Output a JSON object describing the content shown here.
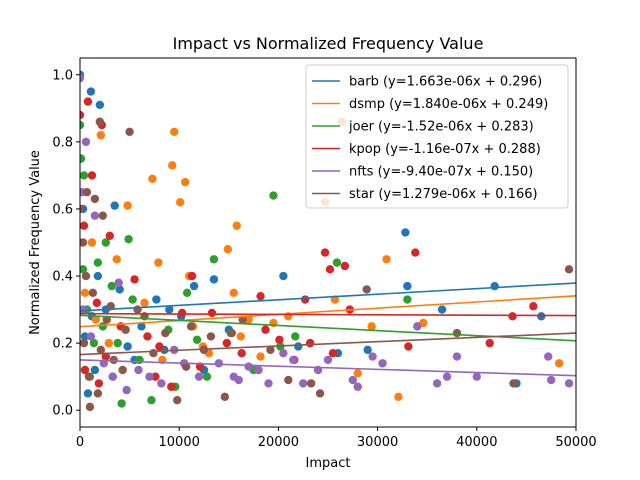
{
  "chart_data": {
    "type": "scatter",
    "title": "Impact vs Normalized Frequency Value",
    "xlabel": "Impact",
    "ylabel": "Normalized Frequency Value",
    "xlim": [
      0,
      50000
    ],
    "ylim": [
      -0.05,
      1.05
    ],
    "x_ticks": [
      0,
      10000,
      20000,
      30000,
      40000,
      50000
    ],
    "x_tick_labels": [
      "0",
      "10000",
      "20000",
      "30000",
      "40000",
      "50000"
    ],
    "y_ticks": [
      0.0,
      0.2,
      0.4,
      0.6,
      0.8,
      1.0
    ],
    "y_tick_labels": [
      "0.0",
      "0.2",
      "0.4",
      "0.6",
      "0.8",
      "1.0"
    ],
    "grid": false,
    "legend_position": "top-right",
    "series": [
      {
        "name": "barb",
        "legend_label": "barb (y=1.663e-06x + 0.296)",
        "color": "#1f77b4",
        "slope": 1.663e-06,
        "intercept": 0.296,
        "points": [
          [
            0,
            1.0
          ],
          [
            1100,
            0.95
          ],
          [
            2000,
            0.91
          ],
          [
            3500,
            0.61
          ],
          [
            4800,
            0.19
          ],
          [
            6200,
            0.25
          ],
          [
            7700,
            0.33
          ],
          [
            9000,
            0.3
          ],
          [
            10200,
            0.28
          ],
          [
            11500,
            0.37
          ],
          [
            13500,
            0.39
          ],
          [
            15000,
            0.24
          ],
          [
            20500,
            0.4
          ],
          [
            22000,
            0.19
          ],
          [
            26000,
            0.17
          ],
          [
            29000,
            0.18
          ],
          [
            32800,
            0.53
          ],
          [
            33000,
            0.37
          ],
          [
            36500,
            0.3
          ],
          [
            41800,
            0.37
          ],
          [
            44000,
            0.08
          ],
          [
            46500,
            0.28
          ],
          [
            500,
            0.22
          ],
          [
            1500,
            0.12
          ],
          [
            2600,
            0.3
          ],
          [
            3300,
            0.1
          ],
          [
            4000,
            0.36
          ],
          [
            800,
            0.05
          ],
          [
            1800,
            0.4
          ],
          [
            5500,
            0.15
          ],
          [
            8500,
            0.18
          ],
          [
            12500,
            0.12
          ],
          [
            300,
            0.6
          ],
          [
            1200,
            0.28
          ]
        ]
      },
      {
        "name": "dsmp",
        "legend_label": "dsmp (y=1.840e-06x + 0.249)",
        "color": "#ff7f0e",
        "slope": 1.84e-06,
        "intercept": 0.249,
        "points": [
          [
            1200,
            0.5
          ],
          [
            2100,
            0.82
          ],
          [
            4800,
            0.61
          ],
          [
            7300,
            0.69
          ],
          [
            7900,
            0.44
          ],
          [
            9300,
            0.73
          ],
          [
            9500,
            0.83
          ],
          [
            10100,
            0.62
          ],
          [
            10600,
            0.68
          ],
          [
            11000,
            0.4
          ],
          [
            12400,
            0.19
          ],
          [
            14900,
            0.48
          ],
          [
            15500,
            0.35
          ],
          [
            15800,
            0.55
          ],
          [
            17000,
            0.27
          ],
          [
            19500,
            0.26
          ],
          [
            21000,
            0.28
          ],
          [
            24700,
            0.62
          ],
          [
            25700,
            0.33
          ],
          [
            26400,
            0.86
          ],
          [
            29400,
            0.25
          ],
          [
            30900,
            0.45
          ],
          [
            32100,
            0.04
          ],
          [
            34600,
            0.26
          ],
          [
            48300,
            0.14
          ],
          [
            500,
            0.35
          ],
          [
            1600,
            0.27
          ],
          [
            2900,
            0.2
          ],
          [
            3700,
            0.45
          ],
          [
            6500,
            0.32
          ],
          [
            8300,
            0.15
          ],
          [
            11400,
            0.25
          ],
          [
            13000,
            0.17
          ],
          [
            16200,
            0.22
          ],
          [
            18200,
            0.16
          ],
          [
            23200,
            0.2
          ],
          [
            28000,
            0.11
          ]
        ]
      },
      {
        "name": "joer",
        "legend_label": "joer (y=-1.52e-06x + 0.283)",
        "color": "#2ca02c",
        "slope": -1.52e-06,
        "intercept": 0.283,
        "points": [
          [
            0,
            0.85
          ],
          [
            100,
            0.75
          ],
          [
            400,
            0.7
          ],
          [
            1800,
            0.44
          ],
          [
            2600,
            0.5
          ],
          [
            3200,
            0.37
          ],
          [
            4900,
            0.51
          ],
          [
            5300,
            0.33
          ],
          [
            7200,
            0.03
          ],
          [
            8900,
            0.24
          ],
          [
            11800,
            0.21
          ],
          [
            13500,
            0.45
          ],
          [
            15200,
            0.23
          ],
          [
            19500,
            0.64
          ],
          [
            20200,
            0.19
          ],
          [
            21700,
            0.22
          ],
          [
            25900,
            0.44
          ],
          [
            33000,
            0.33
          ],
          [
            700,
            0.3
          ],
          [
            1400,
            0.2
          ],
          [
            2300,
            0.25
          ],
          [
            4200,
            0.02
          ],
          [
            6000,
            0.15
          ],
          [
            9600,
            0.07
          ],
          [
            10800,
            0.35
          ],
          [
            300,
            0.42
          ],
          [
            1000,
            0.1
          ],
          [
            3800,
            0.2
          ],
          [
            12800,
            0.1
          ],
          [
            17500,
            0.12
          ]
        ]
      },
      {
        "name": "kpop",
        "legend_label": "kpop (y=-1.16e-07x + 0.288)",
        "color": "#d62728",
        "slope": -1.16e-07,
        "intercept": 0.288,
        "points": [
          [
            0,
            0.88
          ],
          [
            800,
            0.92
          ],
          [
            1200,
            0.7
          ],
          [
            2200,
            0.85
          ],
          [
            3000,
            0.52
          ],
          [
            5500,
            0.39
          ],
          [
            8000,
            0.19
          ],
          [
            9200,
            0.07
          ],
          [
            10300,
            0.29
          ],
          [
            11300,
            0.4
          ],
          [
            13300,
            0.29
          ],
          [
            14800,
            0.2
          ],
          [
            18200,
            0.34
          ],
          [
            18700,
            0.24
          ],
          [
            22700,
            0.33
          ],
          [
            23200,
            0.2
          ],
          [
            24700,
            0.47
          ],
          [
            25200,
            0.42
          ],
          [
            25500,
            0.17
          ],
          [
            26700,
            0.43
          ],
          [
            27200,
            0.3
          ],
          [
            33100,
            0.19
          ],
          [
            33800,
            0.47
          ],
          [
            41300,
            0.2
          ],
          [
            43600,
            0.28
          ],
          [
            45700,
            0.31
          ],
          [
            400,
            0.55
          ],
          [
            1700,
            0.32
          ],
          [
            2600,
            0.16
          ],
          [
            4100,
            0.25
          ],
          [
            6800,
            0.22
          ],
          [
            7600,
            0.1
          ],
          [
            12100,
            0.13
          ],
          [
            16300,
            0.17
          ],
          [
            20100,
            0.21
          ],
          [
            21600,
            0.15
          ],
          [
            500,
            0.12
          ],
          [
            1900,
            0.08
          ]
        ]
      },
      {
        "name": "nfts",
        "legend_label": "nfts (y=-9.40e-07x + 0.150)",
        "color": "#9467bd",
        "slope": -9.4e-07,
        "intercept": 0.15,
        "points": [
          [
            0,
            0.99
          ],
          [
            200,
            0.65
          ],
          [
            600,
            0.8
          ],
          [
            1500,
            0.58
          ],
          [
            3900,
            0.38
          ],
          [
            7000,
            0.1
          ],
          [
            9500,
            0.18
          ],
          [
            10500,
            0.14
          ],
          [
            12000,
            0.1
          ],
          [
            14000,
            0.14
          ],
          [
            15500,
            0.1
          ],
          [
            16000,
            0.09
          ],
          [
            17000,
            0.13
          ],
          [
            18000,
            0.12
          ],
          [
            19000,
            0.08
          ],
          [
            20500,
            0.17
          ],
          [
            21500,
            0.15
          ],
          [
            22500,
            0.08
          ],
          [
            24000,
            0.12
          ],
          [
            25000,
            0.15
          ],
          [
            27500,
            0.09
          ],
          [
            28000,
            0.07
          ],
          [
            29500,
            0.16
          ],
          [
            30500,
            0.14
          ],
          [
            34000,
            0.25
          ],
          [
            36000,
            0.08
          ],
          [
            37000,
            0.1
          ],
          [
            38000,
            0.16
          ],
          [
            40000,
            0.1
          ],
          [
            47200,
            0.16
          ],
          [
            47500,
            0.09
          ],
          [
            49300,
            0.08
          ],
          [
            300,
            0.3
          ],
          [
            1100,
            0.22
          ],
          [
            2400,
            0.14
          ],
          [
            3300,
            0.1
          ],
          [
            4700,
            0.06
          ],
          [
            5900,
            0.12
          ],
          [
            8200,
            0.08
          ]
        ]
      },
      {
        "name": "star",
        "legend_label": "star (y=1.279e-06x + 0.166)",
        "color": "#8c564b",
        "slope": 1.279e-06,
        "intercept": 0.166,
        "points": [
          [
            0,
            0.6
          ],
          [
            300,
            0.5
          ],
          [
            700,
            0.65
          ],
          [
            1500,
            0.63
          ],
          [
            2000,
            0.86
          ],
          [
            2300,
            0.58
          ],
          [
            5000,
            0.83
          ],
          [
            6500,
            0.28
          ],
          [
            9800,
            0.03
          ],
          [
            11200,
            0.25
          ],
          [
            12500,
            0.18
          ],
          [
            13200,
            0.22
          ],
          [
            14600,
            0.04
          ],
          [
            15300,
            0.23
          ],
          [
            16400,
            0.27
          ],
          [
            19200,
            0.18
          ],
          [
            21000,
            0.09
          ],
          [
            23300,
            0.08
          ],
          [
            24200,
            0.05
          ],
          [
            28900,
            0.36
          ],
          [
            38000,
            0.23
          ],
          [
            43700,
            0.08
          ],
          [
            49300,
            0.42
          ],
          [
            400,
            0.2
          ],
          [
            900,
            0.1
          ],
          [
            1300,
            0.35
          ],
          [
            1800,
            0.05
          ],
          [
            2700,
            0.27
          ],
          [
            3400,
            0.15
          ],
          [
            4300,
            0.12
          ],
          [
            5800,
            0.3
          ],
          [
            7400,
            0.17
          ],
          [
            8600,
            0.23
          ],
          [
            10700,
            0.13
          ],
          [
            600,
            0.4
          ],
          [
            1000,
            0.01
          ],
          [
            2100,
            0.18
          ],
          [
            3100,
            0.31
          ],
          [
            4600,
            0.24
          ]
        ]
      }
    ]
  }
}
